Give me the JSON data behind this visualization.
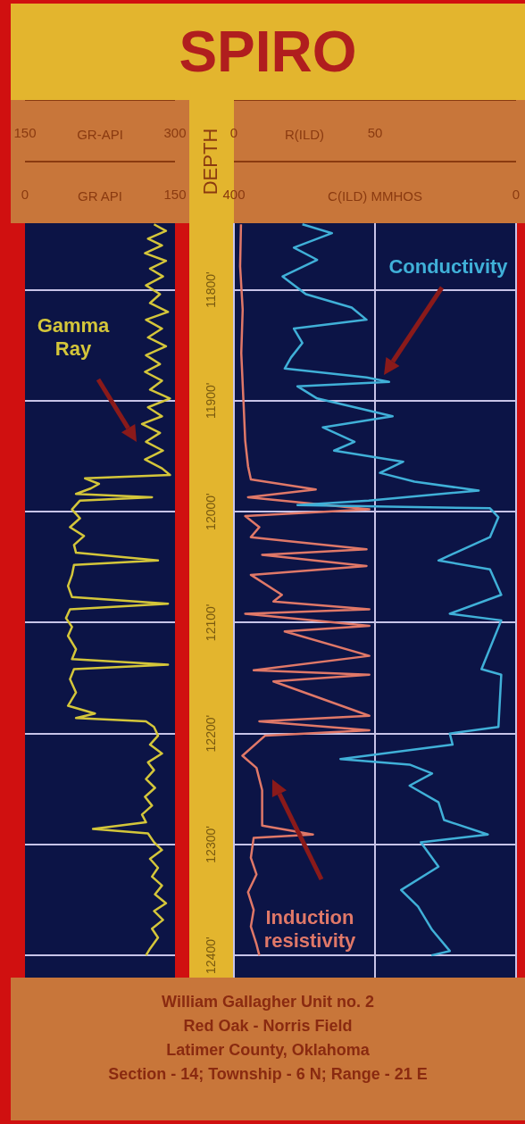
{
  "chart_data": [
    {
      "type": "line",
      "xlabel": "GR API",
      "x2label": "GR-API",
      "xlim": [
        0,
        150
      ],
      "xticks": [
        0,
        150
      ],
      "x2lim": [
        150,
        300
      ],
      "x2ticks": [
        150,
        300
      ],
      "ylim": [
        12420,
        11740
      ],
      "yticks": [
        {
          "value": 11800,
          "label": null
        },
        {
          "value": 11900,
          "label": null
        },
        {
          "value": 12000,
          "label": null
        },
        {
          "value": 12100,
          "label": null
        },
        {
          "value": 12200,
          "label": null
        },
        {
          "value": 12300,
          "label": null
        },
        {
          "value": 12400,
          "label": null
        }
      ],
      "tick_labels": "x",
      "grid": "y",
      "series": [
        {
          "name": "Gamma Ray",
          "color": "#d4c63a",
          "x": [
            129,
            141,
            123,
            137,
            120,
            141,
            125,
            138,
            121,
            135,
            125,
            143,
            121,
            137,
            123,
            141,
            121,
            135,
            120,
            137,
            125,
            145,
            123,
            137,
            117,
            135,
            121,
            138,
            120,
            137,
            145,
            60,
            74,
            66,
            51,
            127,
            55,
            47,
            55,
            45,
            59,
            49,
            51,
            133,
            49,
            47,
            43,
            47,
            143,
            45,
            41,
            47,
            43,
            51,
            47,
            143,
            49,
            45,
            51,
            43,
            70,
            51,
            121,
            129,
            133,
            125,
            137,
            123,
            129,
            121,
            130,
            120,
            127,
            117,
            121,
            68,
            123,
            129,
            137,
            125,
            133,
            127,
            137,
            130,
            141,
            129,
            138,
            127,
            133,
            125,
            121
          ],
          "values": [
            11741,
            11747,
            11754,
            11760,
            11767,
            11774,
            11781,
            11788,
            11796,
            11804,
            11812,
            11820,
            11827,
            11835,
            11843,
            11851,
            11859,
            11867,
            11874,
            11882,
            11890,
            11898,
            11906,
            11914,
            11921,
            11929,
            11937,
            11945,
            11953,
            11961,
            11967,
            11970,
            11975,
            11979,
            11984,
            11987,
            11990,
            11998,
            12006,
            12014,
            12022,
            12030,
            12037,
            12044,
            12048,
            12057,
            12067,
            12077,
            12083,
            12088,
            12096,
            12104,
            12112,
            12124,
            12133,
            12138,
            12142,
            12151,
            12163,
            12175,
            12182,
            12186,
            12189,
            12194,
            12202,
            12210,
            12218,
            12226,
            12233,
            12241,
            12249,
            12257,
            12265,
            12273,
            12280,
            12286,
            12290,
            12298,
            12305,
            12313,
            12321,
            12329,
            12337,
            12345,
            12353,
            12360,
            12368,
            12376,
            12384,
            12394,
            12400
          ]
        }
      ]
    },
    {
      "type": "line",
      "title": "SPIRO",
      "xlabel": "C(ILD) MMHOS",
      "x2label": "R(ILD)",
      "xlim": [
        400,
        0
      ],
      "xticks": [
        400,
        0
      ],
      "x2lim": [
        0,
        100
      ],
      "x2ticks": [
        0,
        50
      ],
      "ylabel": "DEPTH",
      "ylim": [
        12420,
        11740
      ],
      "yticks": [
        {
          "value": 11800,
          "label": "11800'"
        },
        {
          "value": 11900,
          "label": "11900'"
        },
        {
          "value": 12000,
          "label": "12000'"
        },
        {
          "value": 12100,
          "label": "12100'"
        },
        {
          "value": 12200,
          "label": "12200'"
        },
        {
          "value": 12300,
          "label": "12300'"
        },
        {
          "value": 12400,
          "label": "12400'"
        }
      ],
      "grid": true,
      "annotations": [
        "William Gallagher Unit no. 2",
        "Red Oak - Norris Field",
        "Latimer County, Oklahoma",
        "Section - 14; Township - 6 N; Range - 21 E"
      ],
      "series": [
        {
          "name": "Conductivity",
          "color": "#40b0d8",
          "x": [
            303,
            261,
            315,
            282,
            331,
            298,
            233,
            212,
            315,
            303,
            319,
            328,
            212,
            180,
            310,
            282,
            175,
            274,
            229,
            258,
            160,
            193,
            144,
            53,
            209,
            310,
            37,
            25,
            37,
            110,
            37,
            21,
            94,
            21,
            49,
            21,
            25,
            94,
            90,
            249,
            151,
            119,
            151,
            110,
            102,
            40,
            135,
            110,
            163,
            139,
            119,
            94,
            120
          ],
          "values": [
            11741,
            11749,
            11762,
            11773,
            11788,
            11804,
            11816,
            11827,
            11835,
            11848,
            11861,
            11871,
            11879,
            11883,
            11887,
            11898,
            11914,
            11924,
            11937,
            11945,
            11955,
            11965,
            11973,
            11981,
            11990,
            11994,
            11997,
            12005,
            12023,
            12044,
            12052,
            12075,
            12092,
            12098,
            12142,
            12147,
            12194,
            12200,
            12210,
            12223,
            12228,
            12236,
            12247,
            12262,
            12278,
            12291,
            12298,
            12320,
            12341,
            12356,
            12377,
            12396,
            12400
          ]
        },
        {
          "name": "Induction resistivity",
          "color": "#e07868",
          "axis": "x2",
          "x": [
            2.5,
            2.2,
            3.1,
            2.6,
            3.3,
            4,
            5,
            6,
            29,
            5,
            48,
            4,
            9,
            6,
            47,
            10,
            47,
            6,
            17,
            14,
            48,
            4,
            48,
            18,
            48,
            7,
            48,
            14,
            48,
            9,
            48,
            11,
            3,
            8,
            10,
            10,
            28,
            7,
            6,
            8,
            5,
            7,
            6,
            8,
            9
          ],
          "values": [
            11741,
            11779,
            11818,
            11857,
            11896,
            11936,
            11959,
            11971,
            11980,
            11987,
            11998,
            12004,
            12014,
            12023,
            12034,
            12039,
            12049,
            12057,
            12075,
            12081,
            12088,
            12092,
            12103,
            12108,
            12130,
            12143,
            12147,
            12153,
            12184,
            12189,
            12197,
            12202,
            12220,
            12231,
            12251,
            12283,
            12291,
            12294,
            12312,
            12327,
            12343,
            12359,
            12374,
            12390,
            12400
          ]
        }
      ]
    }
  ]
}
